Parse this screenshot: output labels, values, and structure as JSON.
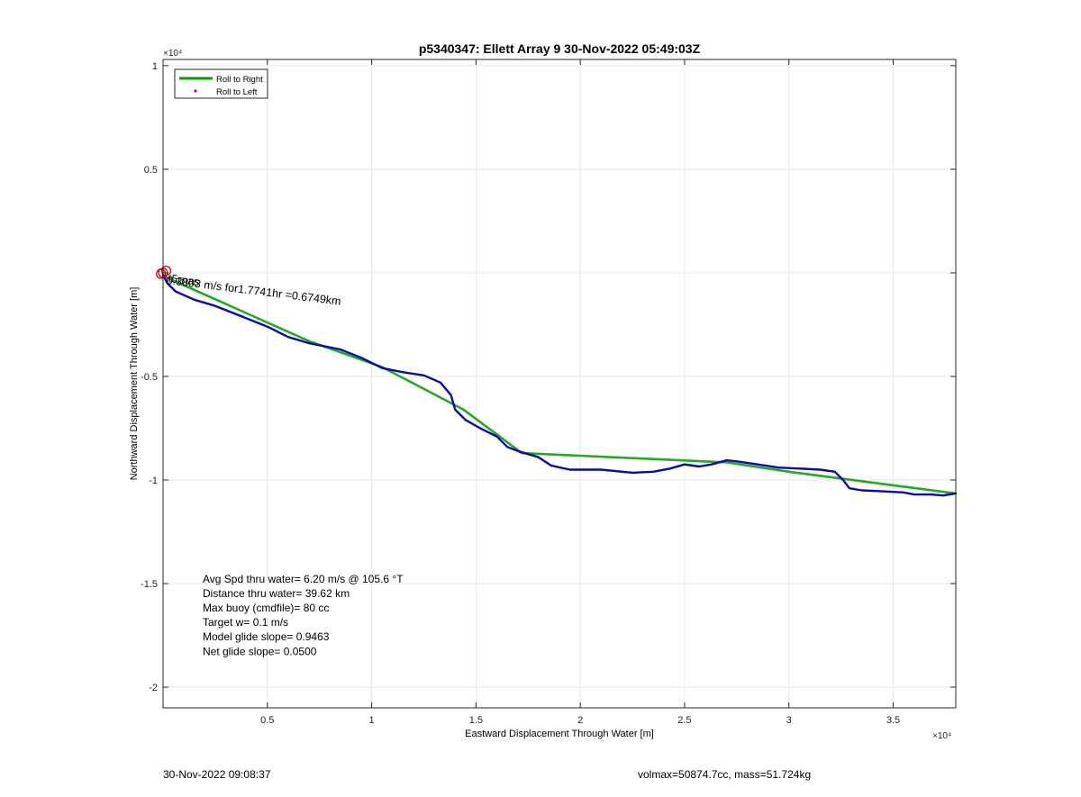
{
  "chart_data": {
    "type": "line",
    "title": "p5340347: Ellett Array 9 30-Nov-2022 05:49:03Z",
    "xlabel": "Eastward Displacement Through Water [m]",
    "ylabel": "Northward Displacement Through Water [m]",
    "x_exponent": "×10⁴",
    "y_exponent": "×10⁴",
    "xlim": [
      0,
      38000
    ],
    "ylim": [
      -21000,
      10300
    ],
    "x_ticks": [
      {
        "value": 5000,
        "label": "0.5"
      },
      {
        "value": 10000,
        "label": "1"
      },
      {
        "value": 15000,
        "label": "1.5"
      },
      {
        "value": 20000,
        "label": "2"
      },
      {
        "value": 25000,
        "label": "2.5"
      },
      {
        "value": 30000,
        "label": "3"
      },
      {
        "value": 35000,
        "label": "3.5"
      }
    ],
    "y_ticks": [
      {
        "value": 10000,
        "label": "1"
      },
      {
        "value": 5000,
        "label": "0.5"
      },
      {
        "value": 0,
        "label": ""
      },
      {
        "value": -5000,
        "label": "-0.5"
      },
      {
        "value": -10000,
        "label": "-1"
      },
      {
        "value": -15000,
        "label": "-1.5"
      },
      {
        "value": -20000,
        "label": "-2"
      }
    ],
    "grid": true,
    "legend_position": "top-left",
    "legend": [
      {
        "label": "Roll to Right",
        "color": "#00a000",
        "style": "line"
      },
      {
        "label": "Roll to Left",
        "color": "#dd0000",
        "style": "dot"
      }
    ],
    "series": [
      {
        "name": "",
        "role": "model",
        "color": "#22aa22",
        "x": [
          0,
          7000,
          10500,
          14400,
          17200,
          27000,
          30000,
          38000
        ],
        "y": [
          -150,
          -3300,
          -4550,
          -6600,
          -8700,
          -9150,
          -9600,
          -10650
        ]
      },
      {
        "name": "",
        "role": "track",
        "color": "#0a0aa8",
        "x": [
          0,
          200,
          600,
          1500,
          2500,
          3500,
          5000,
          6000,
          7000,
          8500,
          9500,
          10500,
          11500,
          12500,
          13300,
          13800,
          14000,
          14500,
          15200,
          16000,
          16500,
          17000,
          18000,
          18600,
          19500,
          21000,
          22500,
          23500,
          24300,
          25000,
          25700,
          26300,
          27000,
          27500,
          28500,
          29500,
          30500,
          31500,
          32200,
          32600,
          32900,
          33500,
          34500,
          35500,
          36000,
          36800,
          37400,
          38000
        ],
        "y": [
          -100,
          -500,
          -900,
          -1300,
          -1600,
          -2000,
          -2600,
          -3100,
          -3400,
          -3700,
          -4100,
          -4600,
          -4800,
          -4950,
          -5300,
          -5900,
          -6600,
          -7100,
          -7500,
          -7900,
          -8400,
          -8600,
          -8900,
          -9300,
          -9500,
          -9500,
          -9650,
          -9600,
          -9450,
          -9250,
          -9350,
          -9250,
          -9050,
          -9100,
          -9250,
          -9400,
          -9450,
          -9500,
          -9600,
          -10000,
          -10400,
          -10500,
          -10550,
          -10600,
          -10700,
          -10700,
          -10750,
          -10650
        ]
      }
    ],
    "markers": [
      {
        "name": "",
        "color": "#dd0000",
        "x": [
          0,
          150,
          -100
        ],
        "y": [
          0,
          100,
          -50
        ]
      }
    ],
    "annotations": [
      {
        "text": "Avg Spd thru water=  6.20 m/s @ 105.6 °T",
        "x": 1900,
        "y": -14950
      },
      {
        "text": "Distance thru water= 39.62 km",
        "x": 1900,
        "y": -15650
      },
      {
        "text": "Max buoy (cmdfile)= 80 cc",
        "x": 1900,
        "y": -16350
      },
      {
        "text": "Target w= 0.1 m/s",
        "x": 1900,
        "y": -17050
      },
      {
        "text": "Model glide slope= 0.9463",
        "x": 1900,
        "y": -17750
      },
      {
        "text": "Net glide slope= 0.0500",
        "x": 1900,
        "y": -18450
      }
    ],
    "rotated_label": {
      "text": "0.3803 m/s for1.7741hr =0.6749km",
      "overlap_text": "t5rnas",
      "x": 150,
      "y": -350
    }
  },
  "footer": {
    "left": "30-Nov-2022 09:08:37",
    "right": "volmax=50874.7cc, mass=51.724kg"
  }
}
